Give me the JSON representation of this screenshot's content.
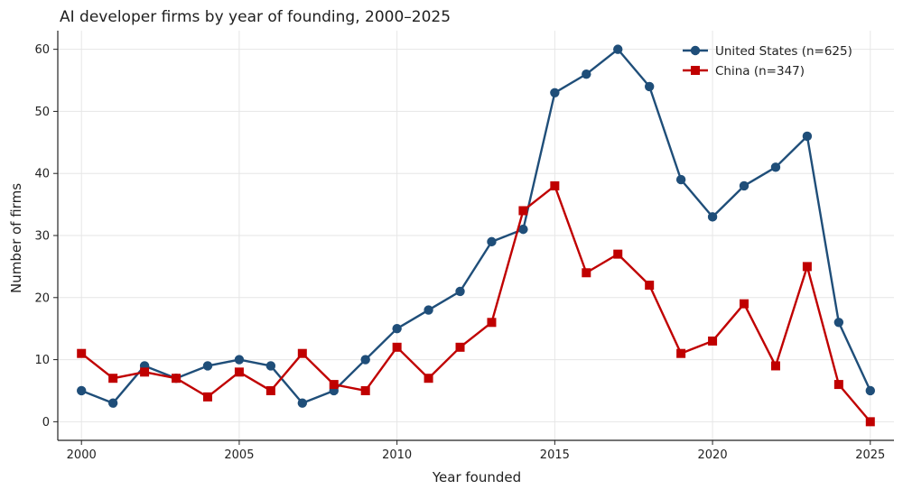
{
  "chart_data": {
    "type": "line",
    "title": "AI developer firms by year of founding, 2000–2025",
    "xlabel": "Year founded",
    "ylabel": "Number of firms",
    "xlim": [
      1999.25,
      2025.75
    ],
    "ylim": [
      -3,
      63
    ],
    "x_ticks": [
      2000,
      2005,
      2010,
      2015,
      2020,
      2025
    ],
    "y_ticks": [
      0,
      10,
      20,
      30,
      40,
      50,
      60
    ],
    "grid": true,
    "legend_position": "top-right",
    "x": [
      2000,
      2001,
      2002,
      2003,
      2004,
      2005,
      2006,
      2007,
      2008,
      2009,
      2010,
      2011,
      2012,
      2013,
      2014,
      2015,
      2016,
      2017,
      2018,
      2019,
      2020,
      2021,
      2022,
      2023,
      2024,
      2025
    ],
    "series": [
      {
        "name": "United States (n=625)",
        "color": "#1f4e79",
        "marker": "circle",
        "values": [
          5,
          3,
          9,
          7,
          9,
          10,
          9,
          3,
          5,
          10,
          15,
          18,
          21,
          29,
          31,
          53,
          56,
          60,
          54,
          39,
          33,
          38,
          41,
          46,
          16,
          5
        ]
      },
      {
        "name": "China (n=347)",
        "color": "#c00000",
        "marker": "square",
        "values": [
          11,
          7,
          8,
          7,
          4,
          8,
          5,
          11,
          6,
          5,
          12,
          7,
          12,
          16,
          34,
          38,
          24,
          27,
          22,
          11,
          13,
          19,
          9,
          25,
          6,
          0
        ]
      }
    ]
  }
}
